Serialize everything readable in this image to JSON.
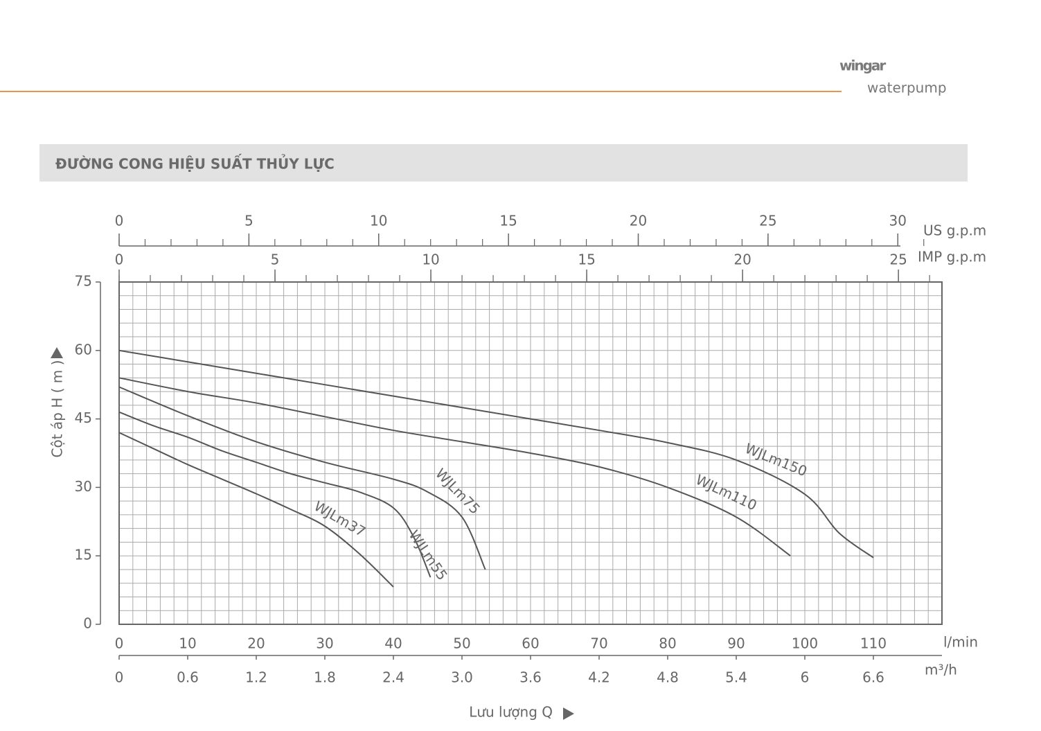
{
  "header": {
    "brand": "wingar",
    "tagline": "waterpump"
  },
  "chart_data": {
    "type": "line",
    "title": "ĐƯỜNG CONG HIỆU SUẤT THỦY LỰC",
    "ylabel": "Cột áp H ( m )",
    "xaxis_caption": "Lưu lượng Q",
    "xlabel": "l/min",
    "xlim": [
      0,
      120
    ],
    "xticks": [
      0,
      10,
      20,
      30,
      40,
      50,
      60,
      70,
      80,
      90,
      100,
      110
    ],
    "ylim": [
      0,
      75
    ],
    "yticks": [
      0,
      15,
      30,
      45,
      60,
      75
    ],
    "grid": true,
    "xgrid": [
      0,
      2,
      4,
      6,
      8,
      10,
      12,
      14,
      16,
      18,
      20,
      22,
      24,
      26,
      28,
      30,
      32,
      34,
      36,
      38,
      40,
      42,
      44,
      46,
      48,
      50,
      52,
      54,
      56,
      58,
      60,
      62,
      64,
      66,
      68,
      70,
      72,
      74,
      76,
      78,
      80,
      82,
      84,
      86,
      88,
      90,
      92,
      94,
      96,
      98,
      100,
      102,
      104,
      106,
      108,
      110,
      112,
      114,
      116,
      118,
      120
    ],
    "ygrid": [
      0,
      3,
      6,
      9,
      12,
      15,
      18,
      21,
      24,
      27,
      30,
      33,
      36,
      39,
      42,
      45,
      48,
      51,
      54,
      57,
      60,
      63,
      66,
      69,
      72,
      75
    ],
    "line_color": "#555555",
    "secondary_x_axes": [
      {
        "label": "m³/h",
        "position": "bottom",
        "lim": [
          0,
          7.2
        ],
        "ticks": [
          0,
          0.6,
          1.2,
          1.8,
          2.4,
          {
            "value": 3,
            "label": "3.0"
          },
          3.6,
          4.2,
          4.8,
          5.4,
          6,
          6.6
        ]
      },
      {
        "label": "US g.p.m",
        "position": "top",
        "lim": [
          0,
          31.7006
        ],
        "ticks": [
          0,
          5,
          10,
          15,
          20,
          25,
          30
        ],
        "minor_ticks": [
          0,
          1,
          2,
          3,
          4,
          5,
          6,
          7,
          8,
          9,
          10,
          11,
          12,
          13,
          14,
          15,
          16,
          17,
          18,
          19,
          20,
          21,
          22,
          23,
          24,
          25,
          26,
          27,
          28,
          29,
          30,
          31
        ]
      },
      {
        "label": "IMP g.p.m",
        "position": "top",
        "lim": [
          0,
          26.397
        ],
        "ticks": [
          0,
          5,
          10,
          15,
          20,
          25
        ],
        "minor_ticks": [
          0,
          1,
          2,
          3,
          4,
          5,
          6,
          7,
          8,
          9,
          10,
          11,
          12,
          13,
          14,
          15,
          16,
          17,
          18,
          19,
          20,
          21,
          22,
          23,
          24,
          25,
          26
        ]
      }
    ],
    "series": [
      {
        "name": "WJLm37",
        "x": [
          0,
          5,
          10,
          15,
          20,
          25,
          30,
          35,
          40
        ],
        "values": [
          42,
          38.5,
          35,
          31.8,
          28.6,
          25.2,
          21.5,
          15.5,
          8.2
        ]
      },
      {
        "name": "WJLm55",
        "x": [
          0,
          5,
          10,
          15,
          20,
          25,
          30,
          35,
          40,
          43,
          45.4
        ],
        "values": [
          46.5,
          43.5,
          41,
          38,
          35.5,
          33,
          31,
          29,
          25.5,
          19,
          10.3
        ]
      },
      {
        "name": "WJLm75",
        "x": [
          0,
          10,
          20,
          30,
          40,
          45,
          50,
          53.4
        ],
        "values": [
          52,
          45.7,
          40,
          35.5,
          31.8,
          29,
          23.5,
          12
        ]
      },
      {
        "name": "WJLm110",
        "x": [
          0,
          10,
          20,
          30,
          40,
          50,
          60,
          70,
          80,
          90,
          97.9
        ],
        "values": [
          54,
          51,
          48.5,
          45.5,
          42.5,
          40,
          37.5,
          34.5,
          30,
          23.5,
          15
        ]
      },
      {
        "name": "WJLm150",
        "x": [
          0,
          10,
          20,
          30,
          40,
          50,
          60,
          70,
          80,
          90,
          100,
          105,
          110
        ],
        "values": [
          60,
          57.5,
          55,
          52.5,
          50,
          47.5,
          45,
          42.5,
          39.8,
          36,
          28.5,
          20,
          14.6
        ]
      }
    ]
  }
}
